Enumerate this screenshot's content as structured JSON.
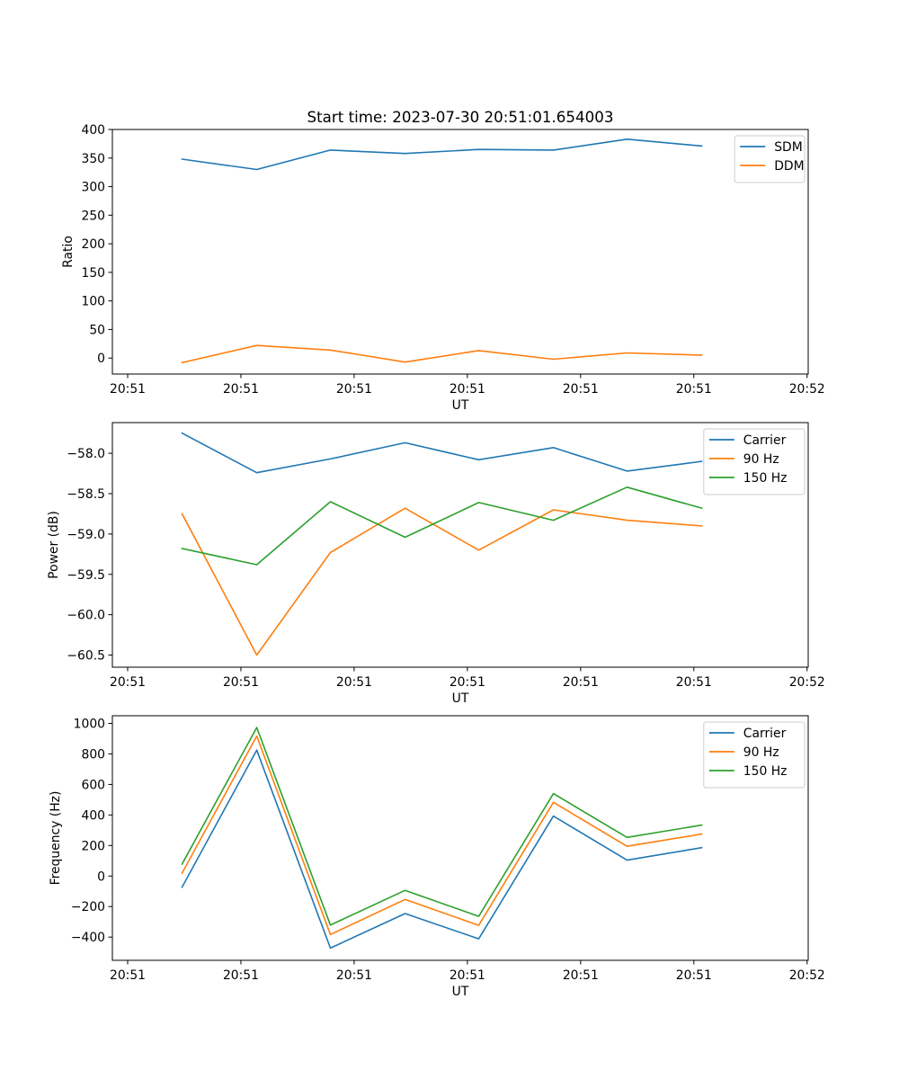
{
  "figure": {
    "title": "Start time: 2023-07-30 20:51:01.654003"
  },
  "chart_data": [
    {
      "type": "line",
      "title": "Start time: 2023-07-30 20:51:01.654003",
      "xlabel": "UT",
      "ylabel": "Ratio",
      "x_units": "seconds after 20:51:00",
      "x": [
        4.8,
        11.4,
        17.9,
        24.5,
        31.0,
        37.6,
        44.1,
        50.7
      ],
      "xlim": [
        -1.35,
        60.1
      ],
      "xticks": [
        0,
        10,
        20,
        30,
        40,
        50,
        60
      ],
      "xtick_labels": [
        "20:51",
        "20:51",
        "20:51",
        "20:51",
        "20:51",
        "20:51",
        "20:52"
      ],
      "ylim": [
        -28,
        400
      ],
      "yticks": [
        0,
        50,
        100,
        150,
        200,
        250,
        300,
        350,
        400
      ],
      "ytick_labels": [
        "0",
        "50",
        "100",
        "150",
        "200",
        "250",
        "300",
        "350",
        "400"
      ],
      "grid": false,
      "legend_position": "top-right",
      "series": [
        {
          "name": "SDM",
          "color": "#1f77b4",
          "values": [
            348,
            330,
            364,
            358,
            365,
            364,
            383,
            371
          ]
        },
        {
          "name": "DDM",
          "color": "#ff7f0e",
          "values": [
            -8,
            22,
            14,
            -7,
            13,
            -2,
            9,
            5
          ]
        }
      ]
    },
    {
      "type": "line",
      "title": "",
      "xlabel": "UT",
      "ylabel": "Power (dB)",
      "x_units": "seconds after 20:51:00",
      "x": [
        4.8,
        11.4,
        17.9,
        24.5,
        31.0,
        37.6,
        44.1,
        50.7
      ],
      "xlim": [
        -1.35,
        60.1
      ],
      "xticks": [
        0,
        10,
        20,
        30,
        40,
        50,
        60
      ],
      "xtick_labels": [
        "20:51",
        "20:51",
        "20:51",
        "20:51",
        "20:51",
        "20:51",
        "20:52"
      ],
      "ylim": [
        -60.65,
        -57.62
      ],
      "yticks": [
        -58.0,
        -58.5,
        -59.0,
        -59.5,
        -60.0,
        -60.5
      ],
      "ytick_labels": [
        "−58.0",
        "−58.5",
        "−59.0",
        "−59.5",
        "−60.0",
        "−60.5"
      ],
      "grid": false,
      "legend_position": "top-right",
      "series": [
        {
          "name": "Carrier",
          "color": "#1f77b4",
          "values": [
            -57.75,
            -58.24,
            -58.07,
            -57.87,
            -58.08,
            -57.93,
            -58.22,
            -58.1
          ]
        },
        {
          "name": "90 Hz",
          "color": "#ff7f0e",
          "values": [
            -58.75,
            -60.5,
            -59.23,
            -58.68,
            -59.2,
            -58.7,
            -58.83,
            -58.9
          ]
        },
        {
          "name": "150 Hz",
          "color": "#2ca02c",
          "values": [
            -59.18,
            -59.38,
            -58.6,
            -59.04,
            -58.61,
            -58.83,
            -58.42,
            -58.68
          ]
        }
      ]
    },
    {
      "type": "line",
      "title": "",
      "xlabel": "UT",
      "ylabel": "Frequency (Hz)",
      "x_units": "seconds after 20:51:00",
      "x": [
        4.8,
        11.4,
        17.9,
        24.5,
        31.0,
        37.6,
        44.1,
        50.7
      ],
      "xlim": [
        -1.35,
        60.1
      ],
      "xticks": [
        0,
        10,
        20,
        30,
        40,
        50,
        60
      ],
      "xtick_labels": [
        "20:51",
        "20:51",
        "20:51",
        "20:51",
        "20:51",
        "20:51",
        "20:52"
      ],
      "ylim": [
        -552,
        1050
      ],
      "yticks": [
        1000,
        800,
        600,
        400,
        200,
        0,
        -200,
        -400
      ],
      "ytick_labels": [
        "1000",
        "800",
        "600",
        "400",
        "200",
        "0",
        "−200",
        "−400"
      ],
      "grid": false,
      "legend_position": "top-right",
      "series": [
        {
          "name": "Carrier",
          "color": "#1f77b4",
          "values": [
            -73,
            825,
            -472,
            -246,
            -411,
            393,
            104,
            186
          ]
        },
        {
          "name": "90 Hz",
          "color": "#ff7f0e",
          "values": [
            19,
            917,
            -383,
            -153,
            -323,
            483,
            195,
            275
          ]
        },
        {
          "name": "150 Hz",
          "color": "#2ca02c",
          "values": [
            78,
            973,
            -321,
            -94,
            -264,
            540,
            253,
            334
          ]
        }
      ]
    }
  ]
}
